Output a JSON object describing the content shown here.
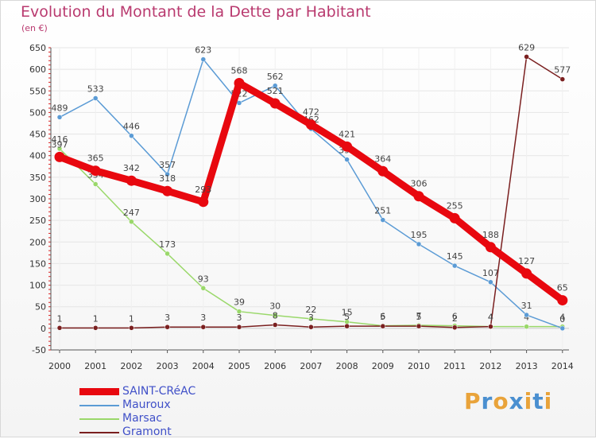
{
  "chart_data": {
    "type": "line",
    "title": "Evolution du Montant de la Dette par Habitant",
    "unit_label": "(en €)",
    "xlabel": "",
    "ylabel": "",
    "ylim": [
      -50,
      650
    ],
    "yticks": [
      "650",
      "600",
      "550",
      "500",
      "450",
      "400",
      "350",
      "300",
      "250",
      "200",
      "150",
      "100",
      "50",
      "0",
      "-50"
    ],
    "categories": [
      "2000",
      "2001",
      "2002",
      "2003",
      "2004",
      "2005",
      "2006",
      "2007",
      "2008",
      "2009",
      "2010",
      "2011",
      "2012",
      "2013",
      "2014"
    ],
    "series": [
      {
        "name": "SAINT-CRéAC",
        "color": "#e8080f",
        "values": [
          397,
          365,
          342,
          318,
          293,
          568,
          521,
          472,
          421,
          364,
          306,
          255,
          188,
          127,
          65
        ],
        "labels": [
          "397",
          "365",
          "342",
          "318",
          "293",
          "568",
          "521",
          "472",
          "421",
          "364",
          "306",
          "255",
          "188",
          "127",
          "65"
        ]
      },
      {
        "name": "Mauroux",
        "color": "#5b9bd5",
        "values": [
          489,
          533,
          446,
          357,
          623,
          522,
          562,
          462,
          391,
          251,
          195,
          145,
          107,
          31,
          0
        ],
        "labels": [
          "489",
          "533",
          "446",
          "357",
          "623",
          "522",
          "562",
          "462",
          "391",
          "251",
          "195",
          "145",
          "107",
          "31",
          "0"
        ]
      },
      {
        "name": "Marsac",
        "color": "#9ad86a",
        "values": [
          416,
          334,
          247,
          173,
          93,
          39,
          30,
          22,
          15,
          6,
          7,
          6,
          4,
          4,
          4
        ],
        "labels": [
          "416",
          "334",
          "247",
          "173",
          "93",
          "39",
          "30",
          "22",
          "15",
          "6",
          "7",
          "6",
          "4",
          "4",
          "4"
        ]
      },
      {
        "name": "Gramont",
        "color": "#7a1f1f",
        "values": [
          1,
          1,
          1,
          3,
          3,
          3,
          8,
          3,
          5,
          5,
          5,
          2,
          4,
          629,
          577
        ],
        "labels": [
          "1",
          "1",
          "1",
          "3",
          "3",
          "3",
          "8",
          "3",
          "5",
          "5",
          "5",
          "2",
          "4",
          "629",
          "577"
        ]
      }
    ],
    "legend_position": "bottom-left"
  },
  "brand": {
    "letters": [
      "P",
      "r",
      "o",
      "x",
      "i",
      "t",
      "i"
    ],
    "colors": [
      "#e9a33a",
      "#4a8fd0",
      "#e9a33a",
      "#4a8fd0",
      "#e9a33a",
      "#4a8fd0",
      "#e9a33a"
    ]
  }
}
